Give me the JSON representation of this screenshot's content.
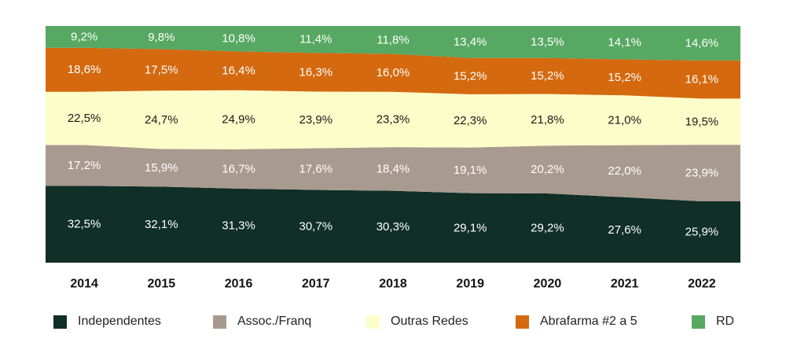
{
  "chart_data": {
    "type": "area",
    "stacked": true,
    "normalized": true,
    "categories": [
      "2014",
      "2015",
      "2016",
      "2017",
      "2018",
      "2019",
      "2020",
      "2021",
      "2022"
    ],
    "series": [
      {
        "name": "Independentes",
        "color": "#0f2f27",
        "text_color": "#ffffff",
        "values": [
          32.5,
          32.1,
          31.3,
          30.7,
          30.3,
          29.1,
          29.2,
          27.6,
          25.9
        ],
        "labels": [
          "32,5%",
          "32,1%",
          "31,3%",
          "30,7%",
          "30,3%",
          "29,1%",
          "29,2%",
          "27,6%",
          "25,9%"
        ]
      },
      {
        "name": "Assoc./Franq",
        "color": "#a99a8f",
        "text_color": "#ffffff",
        "values": [
          17.2,
          15.9,
          16.7,
          17.6,
          18.4,
          19.1,
          20.2,
          22.0,
          23.9
        ],
        "labels": [
          "17,2%",
          "15,9%",
          "16,7%",
          "17,6%",
          "18,4%",
          "19,1%",
          "20,2%",
          "22,0%",
          "23,9%"
        ]
      },
      {
        "name": "Outras Redes",
        "color": "#fdfdc9",
        "text_color": "#1a1a1a",
        "values": [
          22.5,
          24.7,
          24.9,
          23.9,
          23.3,
          22.3,
          21.8,
          21.0,
          19.5
        ],
        "labels": [
          "22,5%",
          "24,7%",
          "24,9%",
          "23,9%",
          "23,3%",
          "22,3%",
          "21,8%",
          "21,0%",
          "19,5%"
        ]
      },
      {
        "name": "Abrafarma #2 a 5",
        "color": "#d4690f",
        "text_color": "#ffffff",
        "values": [
          18.6,
          17.5,
          16.4,
          16.3,
          16.0,
          15.2,
          15.2,
          15.2,
          16.1
        ],
        "labels": [
          "18,6%",
          "17,5%",
          "16,4%",
          "16,3%",
          "16,0%",
          "15,2%",
          "15,2%",
          "15,2%",
          "16,1%"
        ]
      },
      {
        "name": "RD",
        "color": "#57a862",
        "text_color": "#ffffff",
        "values": [
          9.2,
          9.8,
          10.8,
          11.4,
          11.8,
          13.4,
          13.5,
          14.1,
          14.6
        ],
        "labels": [
          "9,2%",
          "9,8%",
          "10,8%",
          "11,4%",
          "11,8%",
          "13,4%",
          "13,5%",
          "14,1%",
          "14,6%"
        ]
      }
    ],
    "ylim": [
      0,
      100
    ],
    "grid": false,
    "legend_position": "bottom"
  }
}
